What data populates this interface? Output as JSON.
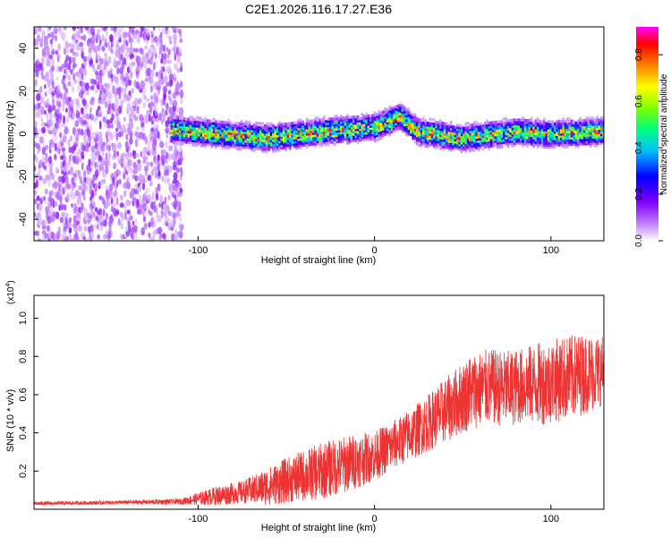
{
  "title": "C2E1.2026.116.17.27.E36",
  "chart_data": [
    {
      "type": "heatmap",
      "name": "spectrogram",
      "xlabel": "Height of straight line (km)",
      "ylabel": "Frequency (Hz)",
      "xlim": [
        -193,
        130
      ],
      "ylim": [
        -50,
        50
      ],
      "xticks": [
        -100,
        0,
        100
      ],
      "yticks": [
        -40,
        -20,
        0,
        20,
        40
      ],
      "colorbar": {
        "label": "Normalized spectral amplitude",
        "range": [
          0,
          0.92
        ],
        "ticks": [
          0.0,
          0.2,
          0.4,
          0.6,
          0.8
        ],
        "colors": [
          "#ffffff",
          "#c080ff",
          "#8000ff",
          "#0000ff",
          "#00c0ff",
          "#00ff80",
          "#80ff00",
          "#ffff00",
          "#ff8000",
          "#ff0000",
          "#ff00ff"
        ]
      },
      "features": [
        {
          "label": "noise_region",
          "x_range": [
            -193,
            -110
          ],
          "f_range": [
            -50,
            50
          ],
          "amplitude": 0.1
        },
        {
          "label": "signal_band",
          "x_range": [
            -115,
            130
          ],
          "center_hz": 0,
          "halfwidth_hz": 6,
          "peak_amplitude": 0.92
        },
        {
          "label": "ridge_track",
          "x": [
            -115,
            -60,
            -30,
            0,
            15,
            25,
            50,
            80,
            100,
            130
          ],
          "f": [
            2,
            -2,
            1,
            3,
            8,
            1,
            -2,
            1,
            0,
            1
          ]
        }
      ]
    },
    {
      "type": "line",
      "name": "snr",
      "xlabel": "Height of straight line (km)",
      "ylabel": "SNR (10 * v/v)",
      "yscale_label": "(x10",
      "yscale_exponent": "4",
      "xlim": [
        -193,
        130
      ],
      "ylim": [
        0,
        1.12
      ],
      "xticks": [
        -100,
        0,
        100
      ],
      "yticks": [
        0.2,
        0.4,
        0.6,
        0.8,
        1.0
      ],
      "color": "#ee3333",
      "series": [
        {
          "name": "SNR",
          "x": [
            -193,
            -150,
            -110,
            -90,
            -75,
            -60,
            -50,
            -30,
            -15,
            0,
            15,
            30,
            45,
            55,
            65,
            75,
            85,
            95,
            105,
            115,
            125,
            130
          ],
          "y": [
            0.03,
            0.035,
            0.04,
            0.07,
            0.09,
            0.12,
            0.15,
            0.2,
            0.24,
            0.28,
            0.36,
            0.45,
            0.55,
            0.62,
            0.64,
            0.63,
            0.65,
            0.66,
            0.68,
            0.7,
            0.72,
            0.73
          ],
          "spread": [
            0.01,
            0.01,
            0.015,
            0.05,
            0.06,
            0.1,
            0.12,
            0.15,
            0.15,
            0.13,
            0.13,
            0.15,
            0.18,
            0.2,
            0.2,
            0.2,
            0.2,
            0.22,
            0.22,
            0.22,
            0.2,
            0.18
          ]
        }
      ]
    }
  ]
}
